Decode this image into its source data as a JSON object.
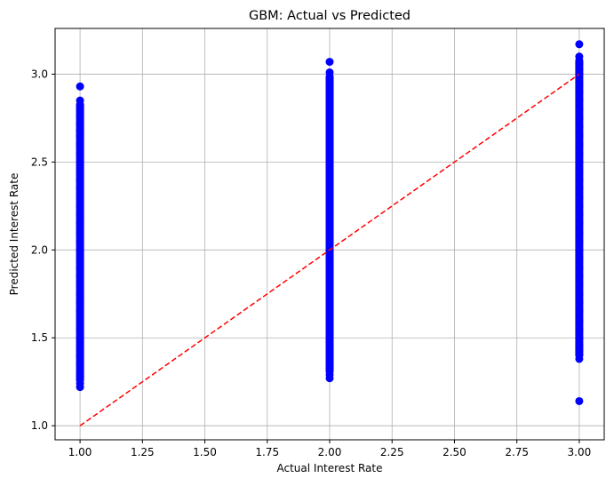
{
  "chart_data": {
    "type": "scatter",
    "title": "GBM: Actual vs Predicted",
    "xlabel": "Actual Interest Rate",
    "ylabel": "Predicted Interest Rate",
    "xlim": [
      0.9,
      3.1
    ],
    "ylim": [
      0.92,
      3.26
    ],
    "xticks": [
      1.0,
      1.25,
      1.5,
      1.75,
      2.0,
      2.25,
      2.5,
      2.75,
      3.0
    ],
    "xtick_labels": [
      "1.00",
      "1.25",
      "1.50",
      "1.75",
      "2.00",
      "2.25",
      "2.50",
      "2.75",
      "3.00"
    ],
    "yticks": [
      1.0,
      1.5,
      2.0,
      2.5,
      3.0
    ],
    "ytick_labels": [
      "1.0",
      "1.5",
      "2.0",
      "2.5",
      "3.0"
    ],
    "grid": true,
    "colors": {
      "points": "#0000ff",
      "reference_line": "#ff0000",
      "grid": "#b0b0b0"
    },
    "series": [
      {
        "actual": 1.0,
        "predicted": [
          1.22,
          1.24,
          1.26,
          1.28,
          1.3,
          1.35,
          1.4,
          1.45,
          1.5,
          1.55,
          1.6,
          1.65,
          1.7,
          1.75,
          1.8,
          1.85,
          1.9,
          1.95,
          2.0,
          2.05,
          2.1,
          2.15,
          2.2,
          2.25,
          2.3,
          2.35,
          2.4,
          2.45,
          2.5,
          2.55,
          2.6,
          2.65,
          2.68,
          2.72,
          2.76,
          2.8,
          2.85,
          2.93
        ]
      },
      {
        "actual": 2.0,
        "predicted": [
          1.27,
          1.29,
          1.31,
          1.33,
          1.35,
          1.4,
          1.45,
          1.5,
          1.55,
          1.6,
          1.65,
          1.7,
          1.75,
          1.8,
          1.85,
          1.9,
          1.95,
          2.0,
          2.05,
          2.1,
          2.15,
          2.2,
          2.25,
          2.3,
          2.35,
          2.4,
          2.45,
          2.5,
          2.55,
          2.6,
          2.65,
          2.7,
          2.75,
          2.8,
          2.85,
          2.9,
          2.94,
          2.97,
          3.01,
          3.07
        ]
      },
      {
        "actual": 3.0,
        "predicted": [
          1.14,
          1.38,
          1.4,
          1.43,
          1.46,
          1.5,
          1.55,
          1.6,
          1.65,
          1.7,
          1.75,
          1.8,
          1.85,
          1.9,
          1.95,
          2.0,
          2.05,
          2.1,
          2.15,
          2.2,
          2.25,
          2.3,
          2.35,
          2.4,
          2.45,
          2.5,
          2.55,
          2.6,
          2.65,
          2.7,
          2.75,
          2.8,
          2.85,
          2.9,
          2.95,
          3.0,
          3.03,
          3.06,
          3.1,
          3.17
        ]
      }
    ],
    "reference_line": {
      "x": [
        1.0,
        3.0
      ],
      "y": [
        1.0,
        3.0
      ],
      "style": "dashed"
    }
  }
}
